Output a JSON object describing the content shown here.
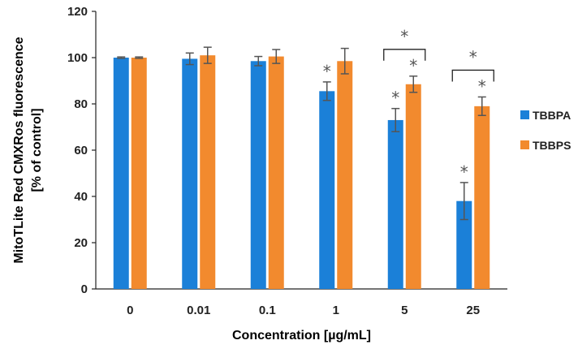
{
  "chart_data": {
    "type": "bar",
    "title": "",
    "xlabel": "Concentration [µg/mL]",
    "ylabel_line1": "MitoTLite Red CMXRos fluorescence",
    "ylabel_line2": "[% of control]",
    "ylim": [
      0,
      120
    ],
    "yticks": [
      0,
      20,
      40,
      60,
      80,
      100,
      120
    ],
    "categories": [
      "0",
      "0.01",
      "0.1",
      "1",
      "5",
      "25"
    ],
    "series": [
      {
        "name": "TBBPA",
        "color": "#1b80d8",
        "values": [
          100,
          99.5,
          98.5,
          85.5,
          73,
          38
        ],
        "errors": [
          0.3,
          2.5,
          2,
          4,
          5,
          8
        ],
        "significant": [
          false,
          false,
          false,
          true,
          true,
          true
        ]
      },
      {
        "name": "TBBPS",
        "color": "#f28a2e",
        "values": [
          100,
          101,
          100.5,
          98.5,
          88.5,
          79
        ],
        "errors": [
          0.3,
          3.5,
          3,
          5.5,
          3.5,
          4
        ],
        "significant": [
          false,
          false,
          false,
          false,
          true,
          true
        ]
      }
    ],
    "brackets": [
      {
        "category_index": 4,
        "label": "*"
      },
      {
        "category_index": 5,
        "label": "*"
      }
    ],
    "legend_position": "right"
  }
}
